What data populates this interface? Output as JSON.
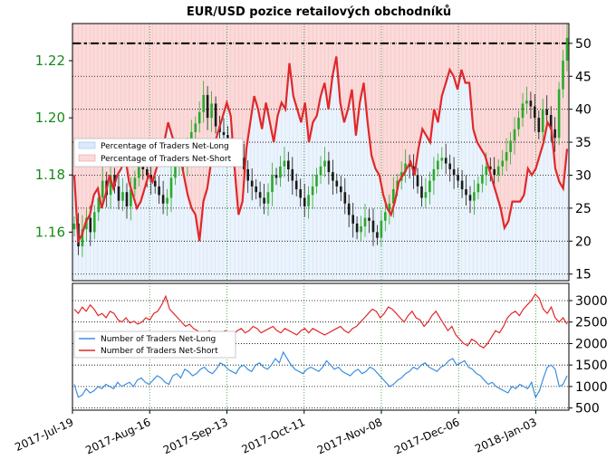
{
  "title": "EUR/USD pozice retailových obchodníků",
  "colors": {
    "long_fill": "#dbe9fb",
    "short_fill": "#fbdada",
    "short_line": "#e0282a",
    "long_line": "#3b8fe0",
    "candle": "#1a1a1a",
    "candle_up": "#2aaa2a",
    "price_axis": "#1a8a1a"
  },
  "chart_data": [
    {
      "type": "line",
      "panel": "top",
      "title": "EUR/USD pozice retailových obchodníků",
      "x_ticks": [
        "2017-Jul-19",
        "2017-Aug-16",
        "2017-Sep-13",
        "2017-Oct-11",
        "2017-Nov-08",
        "2017-Dec-06",
        "2018-Jan-03"
      ],
      "x_range": [
        "2017-07-19",
        "2018-01-15"
      ],
      "y_right_ticks": [
        15,
        20,
        25,
        30,
        35,
        40,
        45,
        50
      ],
      "y_right_range": [
        14,
        53
      ],
      "y_left_ticks": [
        "1.16",
        "1.18",
        "1.20",
        "1.22"
      ],
      "y_left_range": [
        1.143,
        1.233
      ],
      "reference_line": 50,
      "grid": true,
      "legend_position": "left",
      "legend": [
        "Percentage of Traders Net-Long",
        "Percentage of Traders Net-Short"
      ],
      "series": [
        {
          "name": "Percentage of Traders Net-Short",
          "axis": "right",
          "values": [
            30,
            20,
            21,
            23,
            24,
            27,
            28,
            25,
            27,
            30,
            28,
            30,
            31,
            33,
            29,
            27,
            25,
            26,
            28,
            30,
            29,
            31,
            33,
            35,
            38,
            36,
            34,
            33,
            30,
            27,
            25,
            24,
            20,
            26,
            28,
            32,
            35,
            37,
            39,
            41,
            39,
            31,
            24,
            26,
            34,
            38,
            42,
            40,
            37,
            41,
            38,
            35,
            39,
            41,
            40,
            47,
            42,
            40,
            38,
            41,
            35,
            38,
            39,
            42,
            44,
            40,
            45,
            48,
            41,
            38,
            40,
            43,
            36,
            41,
            44,
            38,
            33,
            31,
            30,
            27,
            25,
            24,
            26,
            29,
            30,
            31,
            32,
            30,
            34,
            37,
            36,
            35,
            40,
            38,
            42,
            44,
            46,
            45,
            43,
            46,
            44,
            44,
            37,
            35,
            34,
            33,
            31,
            29,
            27,
            25,
            22,
            23,
            26,
            26,
            26,
            27,
            31,
            30,
            31,
            33,
            35,
            38,
            37,
            31,
            29,
            28,
            34
          ]
        },
        {
          "name": "EUR/USD",
          "axis": "left",
          "type": "candlestick",
          "values": [
            1.163,
            1.155,
            1.161,
            1.165,
            1.16,
            1.167,
            1.172,
            1.178,
            1.173,
            1.18,
            1.176,
            1.171,
            1.174,
            1.169,
            1.175,
            1.179,
            1.185,
            1.182,
            1.18,
            1.178,
            1.176,
            1.173,
            1.17,
            1.172,
            1.179,
            1.183,
            1.186,
            1.184,
            1.19,
            1.195,
            1.198,
            1.202,
            1.208,
            1.2,
            1.205,
            1.197,
            1.195,
            1.194,
            1.193,
            1.19,
            1.188,
            1.186,
            1.182,
            1.178,
            1.176,
            1.174,
            1.172,
            1.17,
            1.174,
            1.18,
            1.179,
            1.183,
            1.185,
            1.182,
            1.178,
            1.175,
            1.172,
            1.169,
            1.173,
            1.176,
            1.18,
            1.183,
            1.185,
            1.181,
            1.178,
            1.176,
            1.174,
            1.17,
            1.166,
            1.163,
            1.16,
            1.162,
            1.165,
            1.164,
            1.16,
            1.158,
            1.164,
            1.167,
            1.17,
            1.175,
            1.178,
            1.181,
            1.184,
            1.183,
            1.18,
            1.176,
            1.172,
            1.174,
            1.178,
            1.182,
            1.185,
            1.186,
            1.184,
            1.182,
            1.18,
            1.178,
            1.175,
            1.173,
            1.171,
            1.174,
            1.177,
            1.18,
            1.183,
            1.182,
            1.18,
            1.183,
            1.185,
            1.188,
            1.192,
            1.196,
            1.2,
            1.205,
            1.206,
            1.204,
            1.2,
            1.195,
            1.203,
            1.201,
            1.196,
            1.193,
            1.21,
            1.22,
            1.228
          ]
        }
      ]
    },
    {
      "type": "line",
      "panel": "bottom",
      "y_right_ticks": [
        500,
        1000,
        1500,
        2000,
        2500,
        3000
      ],
      "y_right_range": [
        450,
        3400
      ],
      "grid": true,
      "legend_position": "left",
      "legend": [
        "Number of Traders Net-Long",
        "Number of Traders Net-Short"
      ],
      "series": [
        {
          "name": "Number of Traders Net-Short",
          "values": [
            2800,
            2700,
            2850,
            2750,
            2900,
            2800,
            2650,
            2700,
            2600,
            2750,
            2700,
            2550,
            2500,
            2600,
            2480,
            2520,
            2450,
            2500,
            2600,
            2550,
            2700,
            2750,
            2900,
            3100,
            2800,
            2700,
            2600,
            2500,
            2400,
            2450,
            2350,
            2300,
            2200,
            2250,
            2300,
            2150,
            2200,
            2250,
            2300,
            2250,
            2200,
            2300,
            2350,
            2250,
            2300,
            2400,
            2350,
            2250,
            2300,
            2350,
            2400,
            2300,
            2250,
            2350,
            2300,
            2250,
            2200,
            2300,
            2350,
            2250,
            2350,
            2300,
            2250,
            2200,
            2250,
            2300,
            2350,
            2400,
            2300,
            2250,
            2350,
            2400,
            2500,
            2600,
            2700,
            2800,
            2750,
            2600,
            2700,
            2850,
            2800,
            2700,
            2600,
            2500,
            2650,
            2750,
            2600,
            2550,
            2400,
            2500,
            2650,
            2750,
            2600,
            2450,
            2300,
            2400,
            2200,
            2100,
            2000,
            1950,
            2100,
            2050,
            1950,
            1900,
            2000,
            2150,
            2300,
            2250,
            2400,
            2600,
            2700,
            2750,
            2650,
            2800,
            2900,
            3000,
            3150,
            3050,
            2800,
            2700,
            2850,
            2600,
            2500,
            2600,
            2450
          ]
        },
        {
          "name": "Number of Traders Net-Long",
          "values": [
            1050,
            750,
            800,
            950,
            850,
            900,
            1000,
            950,
            1050,
            1000,
            950,
            1100,
            1000,
            1050,
            1100,
            1000,
            1150,
            1200,
            1100,
            1050,
            1150,
            1250,
            1200,
            1100,
            1050,
            1250,
            1300,
            1200,
            1400,
            1350,
            1250,
            1300,
            1400,
            1450,
            1350,
            1300,
            1400,
            1550,
            1500,
            1400,
            1350,
            1300,
            1450,
            1500,
            1400,
            1350,
            1500,
            1550,
            1450,
            1400,
            1500,
            1650,
            1550,
            1800,
            1650,
            1500,
            1400,
            1350,
            1300,
            1400,
            1450,
            1400,
            1350,
            1450,
            1600,
            1500,
            1400,
            1450,
            1350,
            1300,
            1250,
            1350,
            1400,
            1300,
            1350,
            1450,
            1400,
            1300,
            1200,
            1100,
            1000,
            1050,
            1150,
            1200,
            1300,
            1350,
            1450,
            1400,
            1500,
            1550,
            1450,
            1400,
            1350,
            1450,
            1500,
            1600,
            1650,
            1500,
            1550,
            1600,
            1450,
            1400,
            1300,
            1250,
            1150,
            1050,
            1100,
            1000,
            950,
            900,
            850,
            1000,
            950,
            1050,
            1000,
            950,
            1100,
            750,
            900,
            1200,
            1450,
            1500,
            1400,
            1000,
            1050,
            1250
          ]
        }
      ]
    }
  ]
}
